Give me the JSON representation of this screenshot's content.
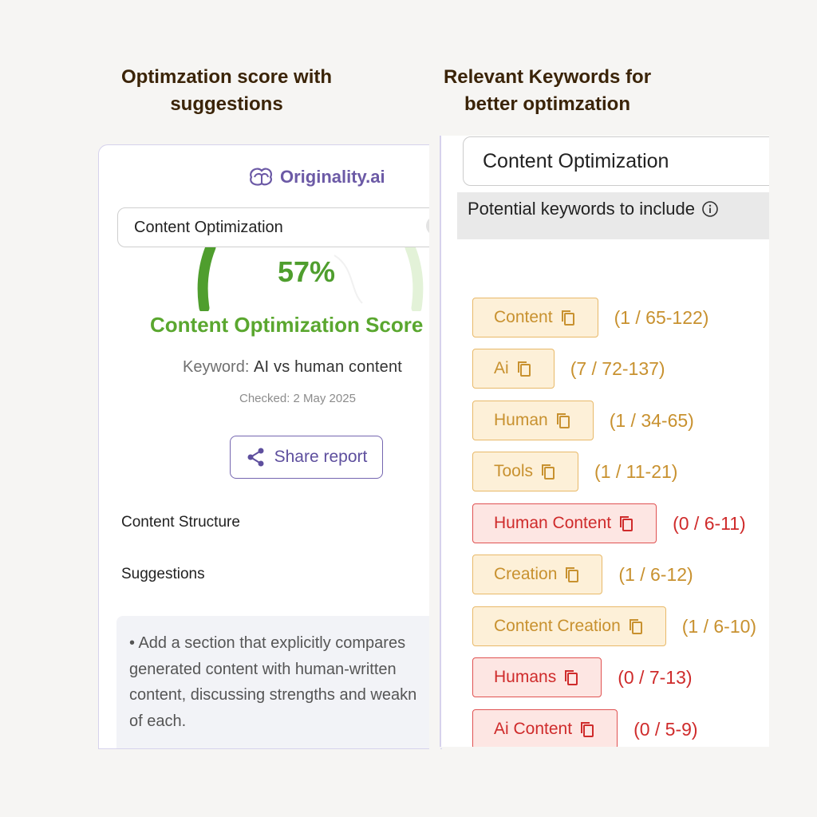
{
  "headings": {
    "left": "Optimzation score with suggestions",
    "right": "Relevant Keywords for better optimzation"
  },
  "left_panel": {
    "brand": "Originality.ai",
    "search_value": "Content Optimization",
    "score_percent": "57%",
    "score_fraction": 0.57,
    "score_label": "Content Optimization Score",
    "keyword_label": "Keyword:",
    "keyword_value": "AI vs human content",
    "checked": "Checked: 2 May 2025",
    "share_label": "Share report",
    "structure_label": "Content Structure",
    "suggestions_label": "Suggestions",
    "suggestion_lines": [
      "• Add a section that explicitly compares",
      "generated content with human-written",
      "content, discussing strengths and weakn",
      "of each."
    ],
    "colors": {
      "accent": "#6c5aa6",
      "score": "#5aa72f"
    }
  },
  "right_panel": {
    "search_value": "Content Optimization",
    "header": "Potential keywords to include",
    "keywords": [
      {
        "label": "Content",
        "count": "(1 / 65-122)",
        "status": "ok"
      },
      {
        "label": "Ai",
        "count": "(7 / 72-137)",
        "status": "ok"
      },
      {
        "label": "Human",
        "count": "(1 / 34-65)",
        "status": "ok"
      },
      {
        "label": "Tools",
        "count": "(1 / 11-21)",
        "status": "ok"
      },
      {
        "label": "Human Content",
        "count": "(0 / 6-11)",
        "status": "bad"
      },
      {
        "label": "Creation",
        "count": "(1 / 6-12)",
        "status": "ok"
      },
      {
        "label": "Content Creation",
        "count": "(1 / 6-10)",
        "status": "ok"
      },
      {
        "label": "Humans",
        "count": "(0 / 7-13)",
        "status": "bad"
      },
      {
        "label": "Ai Content",
        "count": "(0 / 5-9)",
        "status": "bad"
      }
    ],
    "colors": {
      "ok": "#c8912f",
      "bad": "#cf2b2b"
    }
  }
}
